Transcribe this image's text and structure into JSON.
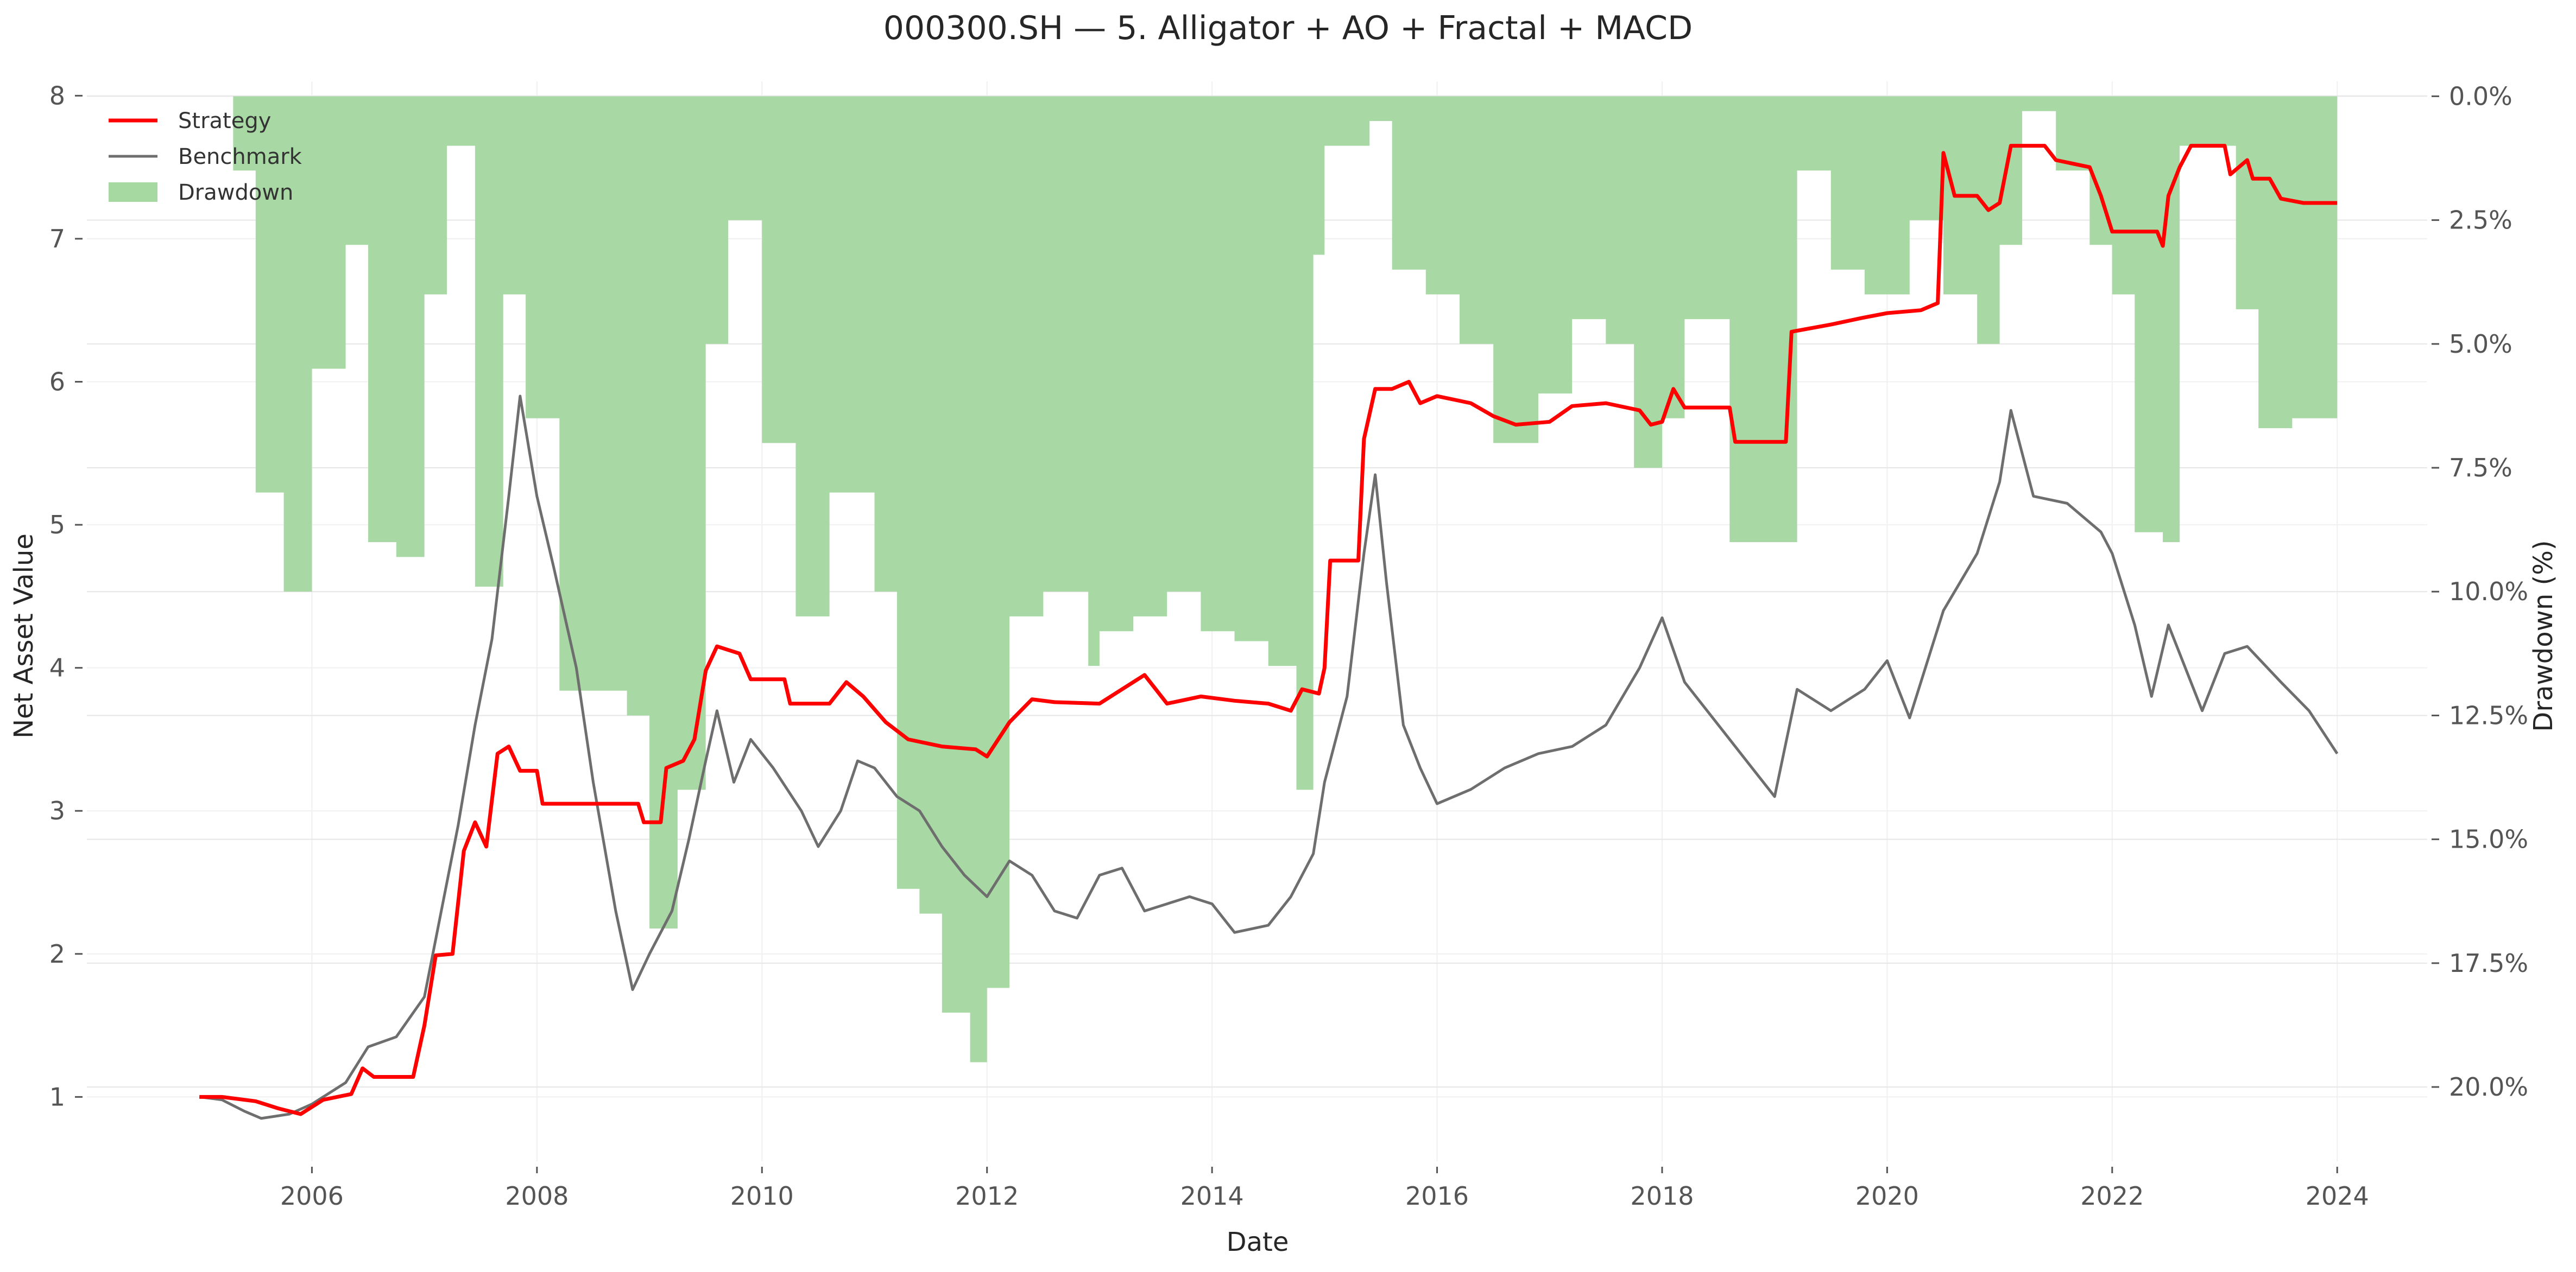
{
  "chart_data": {
    "type": "line",
    "title": "000300.SH — 5. Alligator + AO + Fractal + MACD",
    "xlabel": "Date",
    "ylabel_left": "Net Asset Value",
    "ylabel_right": "Drawdown (%)",
    "x_range": [
      2004.0,
      2024.8
    ],
    "y_left_range": [
      0.55,
      8.1
    ],
    "y_right_range": [
      -21.5,
      0.3
    ],
    "x_ticks": [
      {
        "value": 2006,
        "label": "2006"
      },
      {
        "value": 2008,
        "label": "2008"
      },
      {
        "value": 2010,
        "label": "2010"
      },
      {
        "value": 2012,
        "label": "2012"
      },
      {
        "value": 2014,
        "label": "2014"
      },
      {
        "value": 2016,
        "label": "2016"
      },
      {
        "value": 2018,
        "label": "2018"
      },
      {
        "value": 2020,
        "label": "2020"
      },
      {
        "value": 2022,
        "label": "2022"
      },
      {
        "value": 2024,
        "label": "2024"
      }
    ],
    "y_left_ticks": [
      {
        "value": 1,
        "label": "1"
      },
      {
        "value": 2,
        "label": "2"
      },
      {
        "value": 3,
        "label": "3"
      },
      {
        "value": 4,
        "label": "4"
      },
      {
        "value": 5,
        "label": "5"
      },
      {
        "value": 6,
        "label": "6"
      },
      {
        "value": 7,
        "label": "7"
      },
      {
        "value": 8,
        "label": "8"
      }
    ],
    "y_right_ticks": [
      {
        "value": 0,
        "label": "0.0%"
      },
      {
        "value": -2.5,
        "label": "2.5%"
      },
      {
        "value": -5,
        "label": "5.0%"
      },
      {
        "value": -7.5,
        "label": "7.5%"
      },
      {
        "value": -10,
        "label": "10.0%"
      },
      {
        "value": -12.5,
        "label": "12.5%"
      },
      {
        "value": -15,
        "label": "15.0%"
      },
      {
        "value": -17.5,
        "label": "17.5%"
      },
      {
        "value": -20,
        "label": "20.0%"
      }
    ],
    "legend": {
      "position": "top-left",
      "entries": [
        {
          "label": "Strategy",
          "kind": "line",
          "color": "#ff0000"
        },
        {
          "label": "Benchmark",
          "kind": "line",
          "color": "#6e6e6e"
        },
        {
          "label": "Drawdown",
          "kind": "area",
          "color": "#a6d8a2"
        }
      ]
    },
    "grid": true,
    "series": [
      {
        "name": "Strategy",
        "axis": "left",
        "color": "#ff0000",
        "points": [
          [
            2005.0,
            1.0
          ],
          [
            2005.2,
            1.0
          ],
          [
            2005.5,
            0.97
          ],
          [
            2005.7,
            0.92
          ],
          [
            2005.9,
            0.88
          ],
          [
            2006.1,
            0.98
          ],
          [
            2006.35,
            1.02
          ],
          [
            2006.45,
            1.2
          ],
          [
            2006.55,
            1.14
          ],
          [
            2006.9,
            1.14
          ],
          [
            2007.0,
            1.5
          ],
          [
            2007.1,
            1.99
          ],
          [
            2007.25,
            2.0
          ],
          [
            2007.35,
            2.72
          ],
          [
            2007.45,
            2.92
          ],
          [
            2007.55,
            2.75
          ],
          [
            2007.65,
            3.4
          ],
          [
            2007.75,
            3.45
          ],
          [
            2007.85,
            3.28
          ],
          [
            2008.0,
            3.28
          ],
          [
            2008.05,
            3.05
          ],
          [
            2008.9,
            3.05
          ],
          [
            2008.95,
            2.92
          ],
          [
            2009.1,
            2.92
          ],
          [
            2009.15,
            3.3
          ],
          [
            2009.3,
            3.35
          ],
          [
            2009.4,
            3.5
          ],
          [
            2009.5,
            3.98
          ],
          [
            2009.6,
            4.15
          ],
          [
            2009.8,
            4.1
          ],
          [
            2009.9,
            3.92
          ],
          [
            2010.2,
            3.92
          ],
          [
            2010.25,
            3.75
          ],
          [
            2010.6,
            3.75
          ],
          [
            2010.75,
            3.9
          ],
          [
            2010.9,
            3.8
          ],
          [
            2011.1,
            3.62
          ],
          [
            2011.3,
            3.5
          ],
          [
            2011.6,
            3.45
          ],
          [
            2011.9,
            3.43
          ],
          [
            2012.0,
            3.38
          ],
          [
            2012.2,
            3.62
          ],
          [
            2012.4,
            3.78
          ],
          [
            2012.6,
            3.76
          ],
          [
            2013.0,
            3.75
          ],
          [
            2013.2,
            3.85
          ],
          [
            2013.4,
            3.95
          ],
          [
            2013.6,
            3.75
          ],
          [
            2013.9,
            3.8
          ],
          [
            2014.2,
            3.77
          ],
          [
            2014.5,
            3.75
          ],
          [
            2014.7,
            3.7
          ],
          [
            2014.8,
            3.85
          ],
          [
            2014.95,
            3.82
          ],
          [
            2015.0,
            4.0
          ],
          [
            2015.05,
            4.75
          ],
          [
            2015.3,
            4.75
          ],
          [
            2015.35,
            5.6
          ],
          [
            2015.45,
            5.95
          ],
          [
            2015.6,
            5.95
          ],
          [
            2015.75,
            6.0
          ],
          [
            2015.85,
            5.85
          ],
          [
            2016.0,
            5.9
          ],
          [
            2016.3,
            5.85
          ],
          [
            2016.5,
            5.76
          ],
          [
            2016.7,
            5.7
          ],
          [
            2017.0,
            5.72
          ],
          [
            2017.2,
            5.83
          ],
          [
            2017.5,
            5.85
          ],
          [
            2017.8,
            5.8
          ],
          [
            2017.9,
            5.7
          ],
          [
            2018.0,
            5.72
          ],
          [
            2018.1,
            5.95
          ],
          [
            2018.2,
            5.82
          ],
          [
            2018.6,
            5.82
          ],
          [
            2018.65,
            5.58
          ],
          [
            2019.1,
            5.58
          ],
          [
            2019.15,
            6.35
          ],
          [
            2019.5,
            6.4
          ],
          [
            2019.8,
            6.45
          ],
          [
            2020.0,
            6.48
          ],
          [
            2020.3,
            6.5
          ],
          [
            2020.45,
            6.55
          ],
          [
            2020.5,
            7.6
          ],
          [
            2020.6,
            7.3
          ],
          [
            2020.8,
            7.3
          ],
          [
            2020.9,
            7.2
          ],
          [
            2021.0,
            7.25
          ],
          [
            2021.1,
            7.65
          ],
          [
            2021.4,
            7.65
          ],
          [
            2021.5,
            7.55
          ],
          [
            2021.8,
            7.5
          ],
          [
            2021.9,
            7.3
          ],
          [
            2022.0,
            7.05
          ],
          [
            2022.4,
            7.05
          ],
          [
            2022.45,
            6.95
          ],
          [
            2022.5,
            7.3
          ],
          [
            2022.6,
            7.5
          ],
          [
            2022.7,
            7.65
          ],
          [
            2023.0,
            7.65
          ],
          [
            2023.05,
            7.45
          ],
          [
            2023.2,
            7.55
          ],
          [
            2023.25,
            7.42
          ],
          [
            2023.4,
            7.42
          ],
          [
            2023.5,
            7.28
          ],
          [
            2023.7,
            7.25
          ],
          [
            2024.0,
            7.25
          ]
        ]
      },
      {
        "name": "Benchmark",
        "axis": "left",
        "color": "#6e6e6e",
        "points": [
          [
            2005.0,
            1.0
          ],
          [
            2005.2,
            0.98
          ],
          [
            2005.4,
            0.9
          ],
          [
            2005.55,
            0.85
          ],
          [
            2005.8,
            0.88
          ],
          [
            2006.0,
            0.95
          ],
          [
            2006.3,
            1.1
          ],
          [
            2006.5,
            1.35
          ],
          [
            2006.75,
            1.42
          ],
          [
            2007.0,
            1.7
          ],
          [
            2007.15,
            2.3
          ],
          [
            2007.3,
            2.9
          ],
          [
            2007.45,
            3.6
          ],
          [
            2007.6,
            4.2
          ],
          [
            2007.75,
            5.2
          ],
          [
            2007.85,
            5.9
          ],
          [
            2008.0,
            5.2
          ],
          [
            2008.15,
            4.7
          ],
          [
            2008.35,
            4.0
          ],
          [
            2008.5,
            3.2
          ],
          [
            2008.7,
            2.3
          ],
          [
            2008.85,
            1.75
          ],
          [
            2009.0,
            2.0
          ],
          [
            2009.2,
            2.3
          ],
          [
            2009.35,
            2.8
          ],
          [
            2009.5,
            3.35
          ],
          [
            2009.6,
            3.7
          ],
          [
            2009.75,
            3.2
          ],
          [
            2009.9,
            3.5
          ],
          [
            2010.1,
            3.3
          ],
          [
            2010.35,
            3.0
          ],
          [
            2010.5,
            2.75
          ],
          [
            2010.7,
            3.0
          ],
          [
            2010.85,
            3.35
          ],
          [
            2011.0,
            3.3
          ],
          [
            2011.2,
            3.1
          ],
          [
            2011.4,
            3.0
          ],
          [
            2011.6,
            2.75
          ],
          [
            2011.8,
            2.55
          ],
          [
            2012.0,
            2.4
          ],
          [
            2012.2,
            2.65
          ],
          [
            2012.4,
            2.55
          ],
          [
            2012.6,
            2.3
          ],
          [
            2012.8,
            2.25
          ],
          [
            2013.0,
            2.55
          ],
          [
            2013.2,
            2.6
          ],
          [
            2013.4,
            2.3
          ],
          [
            2013.6,
            2.35
          ],
          [
            2013.8,
            2.4
          ],
          [
            2014.0,
            2.35
          ],
          [
            2014.2,
            2.15
          ],
          [
            2014.5,
            2.2
          ],
          [
            2014.7,
            2.4
          ],
          [
            2014.9,
            2.7
          ],
          [
            2015.0,
            3.2
          ],
          [
            2015.2,
            3.8
          ],
          [
            2015.35,
            4.8
          ],
          [
            2015.45,
            5.35
          ],
          [
            2015.55,
            4.6
          ],
          [
            2015.7,
            3.6
          ],
          [
            2015.85,
            3.3
          ],
          [
            2016.0,
            3.05
          ],
          [
            2016.3,
            3.15
          ],
          [
            2016.6,
            3.3
          ],
          [
            2016.9,
            3.4
          ],
          [
            2017.2,
            3.45
          ],
          [
            2017.5,
            3.6
          ],
          [
            2017.8,
            4.0
          ],
          [
            2018.0,
            4.35
          ],
          [
            2018.2,
            3.9
          ],
          [
            2018.5,
            3.6
          ],
          [
            2018.8,
            3.3
          ],
          [
            2019.0,
            3.1
          ],
          [
            2019.2,
            3.85
          ],
          [
            2019.5,
            3.7
          ],
          [
            2019.8,
            3.85
          ],
          [
            2020.0,
            4.05
          ],
          [
            2020.2,
            3.65
          ],
          [
            2020.5,
            4.4
          ],
          [
            2020.8,
            4.8
          ],
          [
            2021.0,
            5.3
          ],
          [
            2021.1,
            5.8
          ],
          [
            2021.3,
            5.2
          ],
          [
            2021.6,
            5.15
          ],
          [
            2021.9,
            4.95
          ],
          [
            2022.0,
            4.8
          ],
          [
            2022.2,
            4.3
          ],
          [
            2022.35,
            3.8
          ],
          [
            2022.5,
            4.3
          ],
          [
            2022.8,
            3.7
          ],
          [
            2023.0,
            4.1
          ],
          [
            2023.2,
            4.15
          ],
          [
            2023.5,
            3.9
          ],
          [
            2023.75,
            3.7
          ],
          [
            2024.0,
            3.4
          ]
        ]
      },
      {
        "name": "Drawdown",
        "axis": "right",
        "color": "#a6d8a2",
        "points": [
          [
            2005.0,
            0.0
          ],
          [
            2005.3,
            -1.5
          ],
          [
            2005.5,
            -8.0
          ],
          [
            2005.75,
            -10.0
          ],
          [
            2006.0,
            -5.5
          ],
          [
            2006.3,
            -3.0
          ],
          [
            2006.5,
            -9.0
          ],
          [
            2006.75,
            -9.3
          ],
          [
            2007.0,
            -4.0
          ],
          [
            2007.2,
            -1.0
          ],
          [
            2007.45,
            -9.9
          ],
          [
            2007.7,
            -4.0
          ],
          [
            2007.9,
            -6.5
          ],
          [
            2008.2,
            -12.0
          ],
          [
            2008.8,
            -12.5
          ],
          [
            2009.0,
            -16.8
          ],
          [
            2009.25,
            -14.0
          ],
          [
            2009.5,
            -5.0
          ],
          [
            2009.7,
            -2.5
          ],
          [
            2010.0,
            -7.0
          ],
          [
            2010.3,
            -10.5
          ],
          [
            2010.6,
            -8.0
          ],
          [
            2011.0,
            -10.0
          ],
          [
            2011.2,
            -16.0
          ],
          [
            2011.4,
            -16.5
          ],
          [
            2011.6,
            -18.5
          ],
          [
            2011.85,
            -19.5
          ],
          [
            2012.0,
            -18.0
          ],
          [
            2012.2,
            -10.5
          ],
          [
            2012.5,
            -10.0
          ],
          [
            2012.9,
            -11.5
          ],
          [
            2013.0,
            -10.8
          ],
          [
            2013.3,
            -10.5
          ],
          [
            2013.6,
            -10.0
          ],
          [
            2013.9,
            -10.8
          ],
          [
            2014.2,
            -11.0
          ],
          [
            2014.5,
            -11.5
          ],
          [
            2014.75,
            -14.0
          ],
          [
            2014.9,
            -3.2
          ],
          [
            2015.0,
            -1.0
          ],
          [
            2015.4,
            -0.5
          ],
          [
            2015.6,
            -3.5
          ],
          [
            2015.9,
            -4.0
          ],
          [
            2016.2,
            -5.0
          ],
          [
            2016.5,
            -7.0
          ],
          [
            2016.9,
            -6.0
          ],
          [
            2017.2,
            -4.5
          ],
          [
            2017.5,
            -5.0
          ],
          [
            2017.75,
            -7.5
          ],
          [
            2018.0,
            -6.5
          ],
          [
            2018.2,
            -4.5
          ],
          [
            2018.6,
            -9.0
          ],
          [
            2019.1,
            -9.0
          ],
          [
            2019.2,
            -1.5
          ],
          [
            2019.5,
            -3.5
          ],
          [
            2019.8,
            -4.0
          ],
          [
            2020.2,
            -2.5
          ],
          [
            2020.5,
            -4.0
          ],
          [
            2020.8,
            -5.0
          ],
          [
            2021.0,
            -3.0
          ],
          [
            2021.2,
            -0.3
          ],
          [
            2021.5,
            -1.5
          ],
          [
            2021.8,
            -3.0
          ],
          [
            2022.0,
            -4.0
          ],
          [
            2022.2,
            -8.8
          ],
          [
            2022.45,
            -9.0
          ],
          [
            2022.6,
            -1.0
          ],
          [
            2022.9,
            -1.0
          ],
          [
            2023.1,
            -4.3
          ],
          [
            2023.3,
            -6.7
          ],
          [
            2023.6,
            -6.5
          ],
          [
            2023.9,
            -6.5
          ],
          [
            2024.0,
            -6.5
          ]
        ]
      }
    ]
  }
}
